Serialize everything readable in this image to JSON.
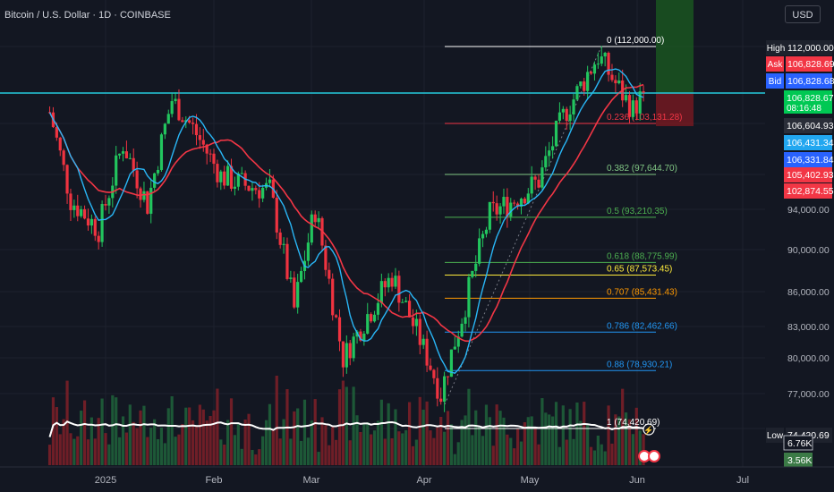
{
  "header": {
    "title": "Bitcoin / U.S. Dollar · 1D · COINBASE",
    "currency_button": "USD"
  },
  "chart_data": {
    "type": "candlestick",
    "symbol": "Bitcoin / U.S. Dollar",
    "interval": "1D",
    "exchange": "COINBASE",
    "y_tick_labels": [
      "94,000.00",
      "90,000.00",
      "86,000.00",
      "83,000.00",
      "80,000.00",
      "77,000.00"
    ],
    "x_tick_labels": [
      "2025",
      "Feb",
      "Mar",
      "Apr",
      "May",
      "Jun",
      "Jul"
    ],
    "price_badges": [
      {
        "label": "High",
        "value": "112,000.00",
        "color": "#1e222d"
      },
      {
        "label": "Ask",
        "value": "106,828.69",
        "color": "#f23645"
      },
      {
        "label": "Bid",
        "value": "106,828.68",
        "color": "#2962ff"
      },
      {
        "label": "",
        "value": "106,828.67",
        "color": "#00c853",
        "sub": "08:16:48"
      },
      {
        "label": "",
        "value": "106,604.93",
        "color": "#2a2e39"
      },
      {
        "label": "",
        "value": "106,431.34",
        "color": "#22a7f0"
      },
      {
        "label": "",
        "value": "106,331.84",
        "color": "#2962ff"
      },
      {
        "label": "",
        "value": "105,402.93",
        "color": "#f23645"
      },
      {
        "label": "",
        "value": "102,874.55",
        "color": "#f23645"
      },
      {
        "label": "Low",
        "value": "74,420.69",
        "color": "#1e222d"
      }
    ],
    "volume_badges": [
      {
        "value": "6.76K",
        "color": "#131722"
      },
      {
        "value": "3.56K",
        "color": "#3b7a46"
      }
    ],
    "fib_levels": [
      {
        "label": "0 (112,000.00)",
        "price": 112000,
        "color": "#ffffff"
      },
      {
        "label": "0.236 (103,131.28)",
        "price": 103131.28,
        "color": "#f23645"
      },
      {
        "label": "0.382 (97,644.70)",
        "price": 97644.7,
        "color": "#81c784"
      },
      {
        "label": "0.5 (93,210.35)",
        "price": 93210.35,
        "color": "#4caf50"
      },
      {
        "label": "0.618 (88,775.99)",
        "price": 88775.99,
        "color": "#4caf50"
      },
      {
        "label": "0.65 (87,573.45)",
        "price": 87573.45,
        "color": "#ffeb3b"
      },
      {
        "label": "0.707 (85,431.43)",
        "price": 85431.43,
        "color": "#ff9800"
      },
      {
        "label": "0.786 (82,462.66)",
        "price": 82462.66,
        "color": "#2196f3"
      },
      {
        "label": "0.88 (78,930.21)",
        "price": 78930.21,
        "color": "#2196f3"
      },
      {
        "label": "1 (74,420.69)",
        "price": 74420.69,
        "color": "#ffffff"
      }
    ],
    "close_series": [
      {
        "date": "2024-12-16",
        "close": 104500
      },
      {
        "date": "2024-12-22",
        "close": 95000
      },
      {
        "date": "2024-12-30",
        "close": 92000
      },
      {
        "date": "2025-01-06",
        "close": 101000
      },
      {
        "date": "2025-01-13",
        "close": 94500
      },
      {
        "date": "2025-01-20",
        "close": 106000
      },
      {
        "date": "2025-01-27",
        "close": 102000
      },
      {
        "date": "2025-02-03",
        "close": 97500
      },
      {
        "date": "2025-02-10",
        "close": 96500
      },
      {
        "date": "2025-02-17",
        "close": 96000
      },
      {
        "date": "2025-02-24",
        "close": 84500
      },
      {
        "date": "2025-03-02",
        "close": 94000
      },
      {
        "date": "2025-03-10",
        "close": 80000
      },
      {
        "date": "2025-03-17",
        "close": 84000
      },
      {
        "date": "2025-03-24",
        "close": 87500
      },
      {
        "date": "2025-03-31",
        "close": 82500
      },
      {
        "date": "2025-04-07",
        "close": 77000
      },
      {
        "date": "2025-04-14",
        "close": 85000
      },
      {
        "date": "2025-04-21",
        "close": 93500
      },
      {
        "date": "2025-04-28",
        "close": 95000
      },
      {
        "date": "2025-05-05",
        "close": 97000
      },
      {
        "date": "2025-05-12",
        "close": 104000
      },
      {
        "date": "2025-05-19",
        "close": 109000
      },
      {
        "date": "2025-05-22",
        "close": 111000
      },
      {
        "date": "2025-05-26",
        "close": 108500
      },
      {
        "date": "2025-06-01",
        "close": 104800
      },
      {
        "date": "2025-06-04",
        "close": 106828.67
      }
    ]
  }
}
